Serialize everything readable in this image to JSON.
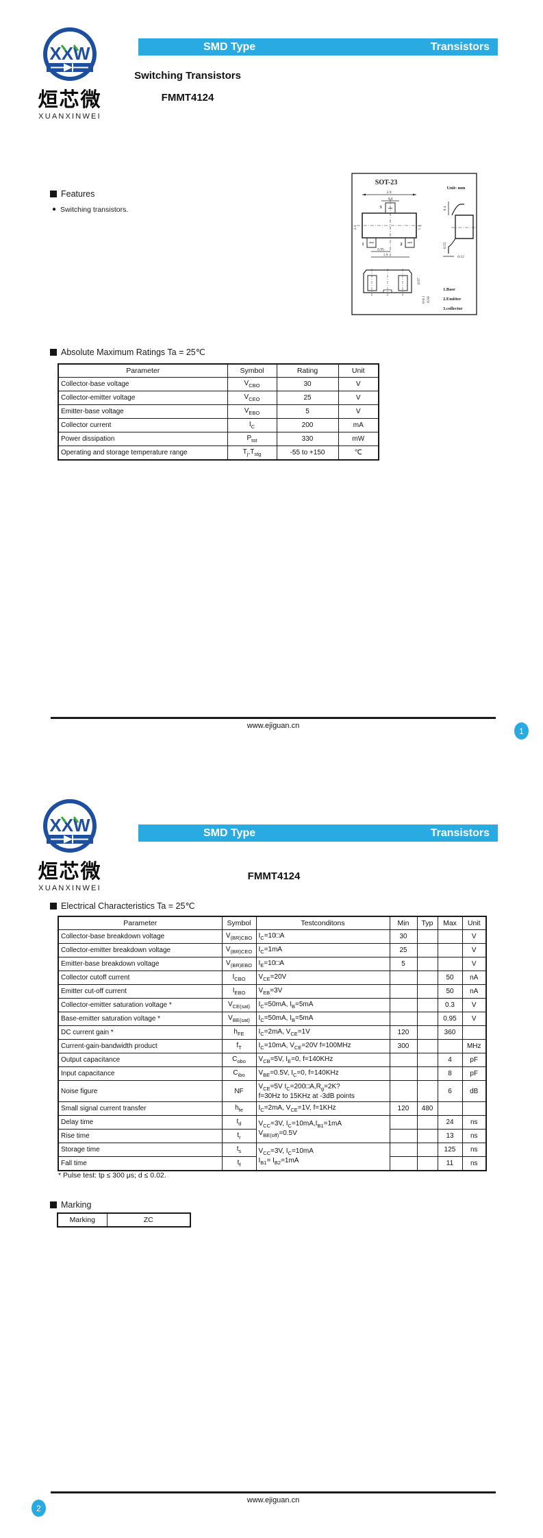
{
  "logo": {
    "monogram": "XXW",
    "cn": "烜芯微",
    "en": "XUANXINWEI"
  },
  "header": {
    "left": "SMD Type",
    "right": "Transistors"
  },
  "page1": {
    "subtitle": "Switching Transistors",
    "part": "FMMT4124",
    "features_title": "Features",
    "features": [
      "Switching transistors."
    ],
    "pkg": {
      "name": "SOT-23",
      "unit": "Unit: mm",
      "pins": [
        "1",
        "2",
        "3"
      ],
      "dims": {
        "top_w": "2.9",
        "tab_w": "0.4",
        "body_h": "2.4",
        "inner_h": "1.3",
        "pitch": "0.95",
        "span": "1.9",
        "side_t": "0.4",
        "side_h": "0.55",
        "lead_t": "0.12",
        "foot_h": "0.97",
        "stand": "0-0.1",
        "foot_w": "0.56"
      },
      "legend": [
        "1.Base",
        "2.Emitter",
        "3.collector"
      ]
    },
    "abs_max": {
      "title": "Absolute Maximum Ratings Ta = 25℃",
      "headers": [
        "Parameter",
        "Symbol",
        "Rating",
        "Unit"
      ],
      "left_cols": [
        0
      ],
      "rows": [
        [
          "Collector-base voltage",
          "V~CBO~",
          "30",
          "V"
        ],
        [
          "Collector-emitter voltage",
          "V~CEO~",
          "25",
          "V"
        ],
        [
          "Emitter-base voltage",
          "V~EBO~",
          "5",
          "V"
        ],
        [
          "Collector current",
          "I~C~",
          "200",
          "mA"
        ],
        [
          "Power dissipation",
          "P~tot~",
          "330",
          "mW"
        ],
        [
          "Operating and storage temperature range",
          "T~j~,T~stg~",
          "-55 to +150",
          "℃"
        ]
      ]
    },
    "footer": {
      "url": "www.ejiguan.cn",
      "page": "1"
    }
  },
  "page2": {
    "part": "FMMT4124",
    "elec": {
      "title": "Electrical Characteristics Ta = 25℃",
      "headers": [
        "Parameter",
        "Symbol",
        "Testconditons",
        "Min",
        "Typ",
        "Max",
        "Unit"
      ],
      "left_cols": [
        0,
        2
      ],
      "rows": [
        [
          "Collector-base breakdown voltage",
          "V~(BR)CBO~",
          "I~C~=10□A",
          "30",
          "",
          "",
          "V"
        ],
        [
          "Collector-emitter breakdown voltage",
          "V~(BR)CEO~",
          "I~C~=1mA",
          "25",
          "",
          "",
          "V"
        ],
        [
          "Emitter-base breakdown voltage",
          "V~(BR)EBO~",
          "I~E~=10□A",
          "5",
          "",
          "",
          "V"
        ],
        [
          "Collector cutoff current",
          "I~CBO~",
          "V~CE~=20V",
          "",
          "",
          "50",
          "nA"
        ],
        [
          "Emitter cut-off current",
          "I~EBO~",
          "V~EB~=3V",
          "",
          "",
          "50",
          "nA"
        ],
        [
          "Collector-emitter saturation voltage  *",
          "V~CE(sat)~",
          "I~C~=50mA, I~B~=5mA",
          "",
          "",
          "0.3",
          "V"
        ],
        [
          "Base-emitter saturation voltage  *",
          "V~BE(sat)~",
          "I~C~=50mA, I~B~=5mA",
          "",
          "",
          "0.95",
          "V"
        ],
        [
          "DC current gain  *",
          "h~FE~",
          "I~C~=2mA, V~CE~=1V",
          "120",
          "",
          "360",
          ""
        ],
        [
          "Current-gain-bandwidth product",
          "f~T~",
          "I~C~=10mA, V~CE~=20V f=100MHz",
          "300",
          "",
          "",
          "MHz"
        ],
        [
          "Output capacitance",
          "C~obo~",
          "V~CB~=5V, I~E~=0, f=140KHz",
          "",
          "",
          "4",
          "pF"
        ],
        [
          "Input capacitance",
          "C~ibo~",
          "V~BE~=0.5V, I~C~=0, f=140KHz",
          "",
          "",
          "8",
          "pF"
        ],
        [
          {
            "t": "Noise figure",
            "h": 31
          },
          "NF",
          {
            "t": "V~CE~=5V I~C~=200□A,R~g~=2K?\nf=30Hz to 15KHz at -3dB points",
            "wrap": true
          },
          "",
          "",
          "6",
          "dB"
        ],
        [
          "Small signal current transfer",
          "h~fe~",
          "I~C~=2mA, V~CE~=1V, f=1KHz",
          "120",
          "480",
          "",
          ""
        ],
        [
          "Delay time",
          "t~d~",
          {
            "t": "V~CC~=3V, I~C~=10mA,I~B1~=1mA\nV~BE(off)~=0.5V",
            "rs": 2,
            "wrap": true
          },
          "",
          "",
          "24",
          "ns"
        ],
        [
          "Rise time",
          "t~r~",
          "",
          "",
          "13",
          "ns"
        ],
        [
          "Storage time",
          "t~s~",
          {
            "t": "V~CC~=3V, I~C~=10mA\nI~B1~= I~B2~=1mA",
            "rs": 2,
            "wrap": true
          },
          "",
          "",
          "125",
          "ns"
        ],
        [
          "Fall time",
          "t~f~",
          "",
          "",
          "11",
          "ns"
        ]
      ]
    },
    "pulse_note": "* Pulse test: tp ≤ 300 μs; d ≤ 0.02.",
    "marking": {
      "title": "Marking",
      "headers": [
        "Marking",
        "ZC"
      ],
      "left_cols": [],
      "rows": []
    },
    "footer": {
      "url": "www.ejiguan.cn",
      "page": "2"
    }
  }
}
